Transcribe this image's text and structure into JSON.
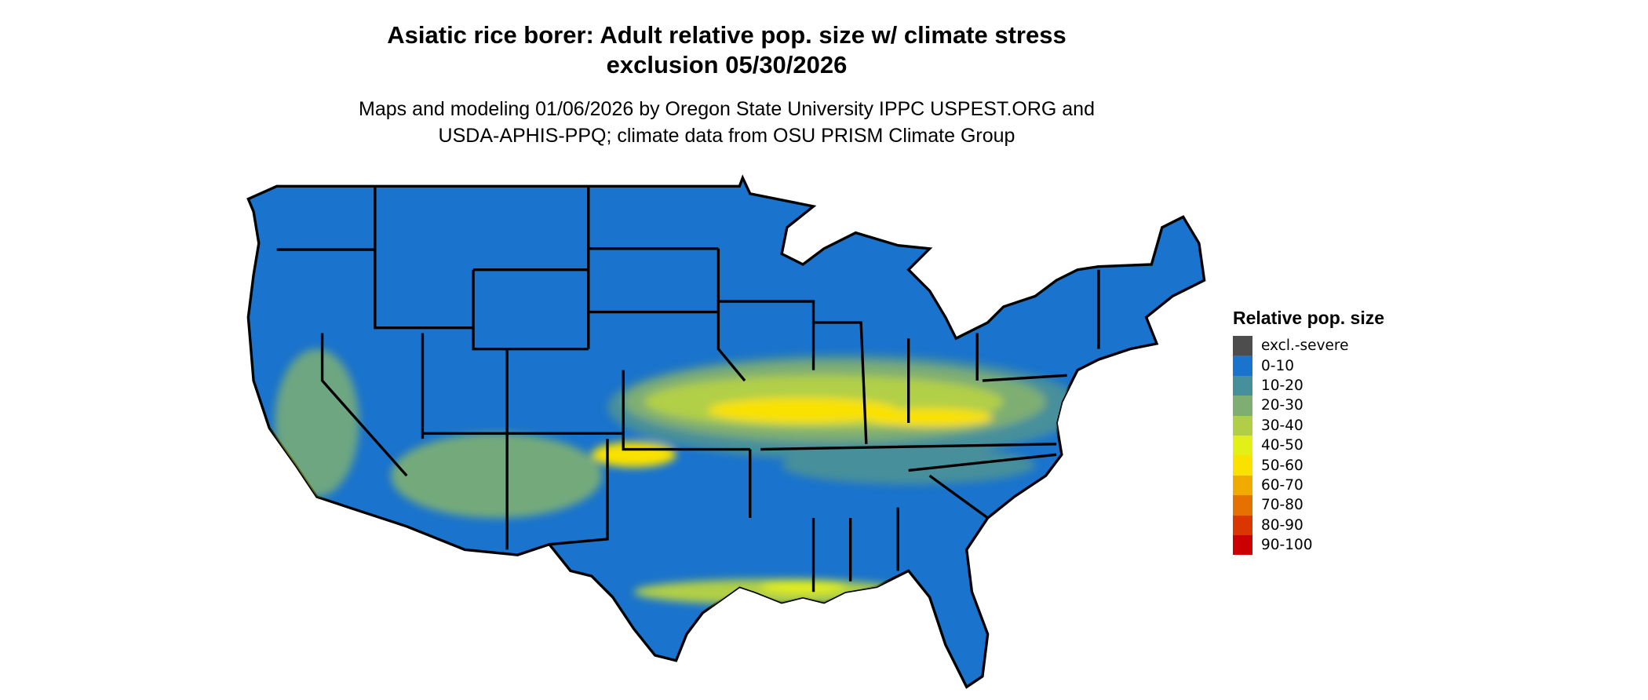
{
  "title_line1": "Asiatic rice borer: Adult relative pop. size w/ climate stress",
  "title_line2": "exclusion 05/30/2026",
  "subtitle_line1": "Maps and modeling 01/06/2026 by Oregon State University IPPC USPEST.ORG and",
  "subtitle_line2": "USDA-APHIS-PPQ; climate data from OSU PRISM Climate Group",
  "legend": {
    "title": "Relative pop. size",
    "items": [
      {
        "label": "excl.-severe",
        "color": "#4d4d4d"
      },
      {
        "label": "0-10",
        "color": "#1a73cc"
      },
      {
        "label": "10-20",
        "color": "#468f9b"
      },
      {
        "label": "20-30",
        "color": "#7eae72"
      },
      {
        "label": "30-40",
        "color": "#b1cf46"
      },
      {
        "label": "40-50",
        "color": "#e3f018"
      },
      {
        "label": "50-60",
        "color": "#f9e100"
      },
      {
        "label": "60-70",
        "color": "#f0aa00"
      },
      {
        "label": "70-80",
        "color": "#e57200"
      },
      {
        "label": "80-90",
        "color": "#d93600"
      },
      {
        "label": "90-100",
        "color": "#cc0000"
      }
    ]
  },
  "map": {
    "region": "Contiguous United States",
    "dominant_class": "0-10",
    "state_border_color": "#000000"
  }
}
